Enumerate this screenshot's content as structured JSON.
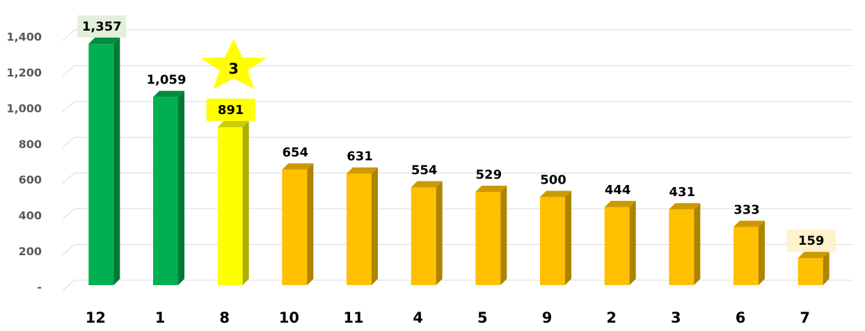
{
  "chart_data": {
    "type": "bar3d",
    "categories": [
      "12",
      "1",
      "8",
      "10",
      "11",
      "4",
      "5",
      "9",
      "2",
      "3",
      "6",
      "7"
    ],
    "values": [
      1357,
      1059,
      891,
      654,
      631,
      554,
      529,
      500,
      444,
      431,
      333,
      159
    ],
    "value_labels": [
      "1,357",
      "1,059",
      "891",
      "654",
      "631",
      "554",
      "529",
      "500",
      "444",
      "431",
      "333",
      "159"
    ],
    "colors": [
      "#00b050",
      "#00b050",
      "#ffff00",
      "#ffc000",
      "#ffc000",
      "#ffc000",
      "#ffc000",
      "#ffc000",
      "#ffc000",
      "#ffc000",
      "#ffc000",
      "#ffc000"
    ],
    "value_label_backgrounds": [
      "#e2efda",
      null,
      "#ffff00",
      null,
      null,
      null,
      null,
      null,
      null,
      null,
      null,
      "#fff2cc"
    ],
    "annotations": [
      {
        "text": "3",
        "category": "8",
        "color": "#ffff00"
      }
    ],
    "ylim": [
      0,
      1400
    ],
    "yticks": [
      {
        "value": 0,
        "label": "-"
      },
      200,
      400,
      600,
      800,
      {
        "value": 1000,
        "label": "1,000"
      },
      {
        "value": 1200,
        "label": "1,200"
      },
      {
        "value": 1400,
        "label": "1,400"
      }
    ],
    "grid": true
  }
}
